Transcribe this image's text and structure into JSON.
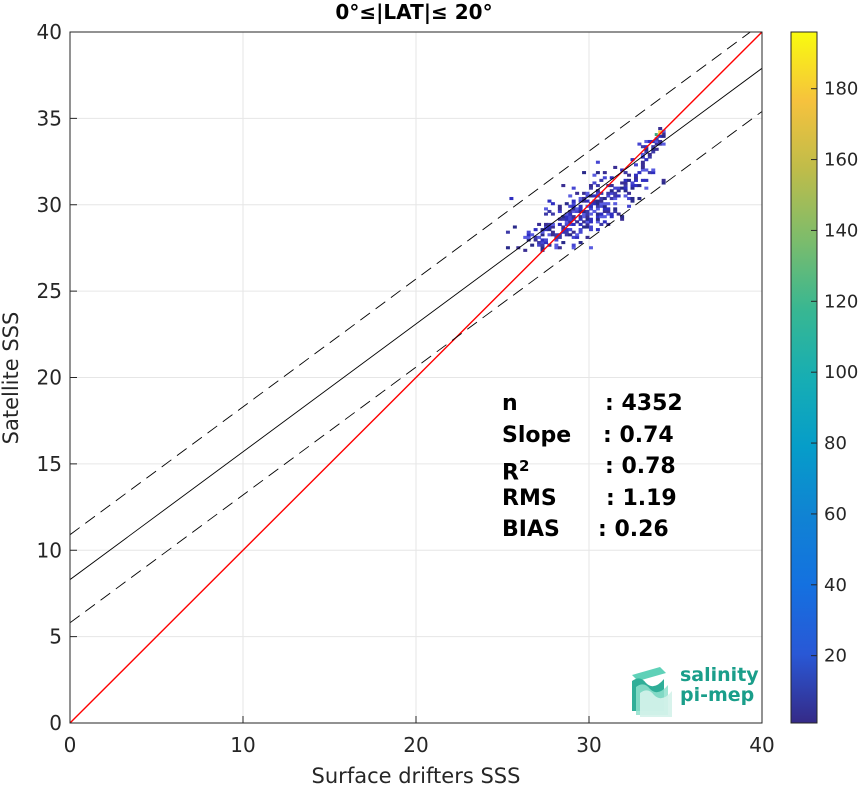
{
  "chart_data": {
    "type": "scatter",
    "title": "0°≤|LAT|≤ 20°",
    "xlabel": "Surface drifters SSS",
    "ylabel": "Satellite SSS",
    "xlim": [
      0,
      40
    ],
    "ylim": [
      0,
      40
    ],
    "xticks": [
      "0",
      "10",
      "20",
      "30",
      "40"
    ],
    "yticks": [
      "0",
      "5",
      "10",
      "15",
      "20",
      "25",
      "30",
      "35",
      "40"
    ],
    "grid": true,
    "colorbar": {
      "range": [
        1,
        196
      ],
      "ticks": [
        "20",
        "40",
        "60",
        "80",
        "100",
        "120",
        "140",
        "160",
        "180"
      ],
      "colormap": "parula"
    },
    "lines": [
      {
        "name": "1:1",
        "color": "#ff0000",
        "style": "solid",
        "intercept": 0,
        "slope": 1
      },
      {
        "name": "regression",
        "color": "#000000",
        "style": "solid",
        "intercept": 8.3,
        "slope": 0.74
      },
      {
        "name": "upper bound",
        "color": "#000000",
        "style": "dashed",
        "intercept": 10.9,
        "slope": 0.74
      },
      {
        "name": "lower bound",
        "color": "#000000",
        "style": "dashed",
        "intercept": 5.8,
        "slope": 0.74
      }
    ],
    "density_cloud": {
      "x_range": [
        23.8,
        34.3
      ],
      "y_range": [
        27.3,
        34.4
      ],
      "center": [
        29.8,
        29.6
      ],
      "peak_count": 196,
      "peak_at": [
        34.0,
        34.1
      ]
    }
  },
  "stats": {
    "n_label": "n",
    "n_value": ": 4352",
    "slope_label": "Slope",
    "slope_value": ": 0.74",
    "r2_label": "R",
    "r2_sup": "2",
    "r2_value": ": 0.78",
    "rms_label": "RMS",
    "rms_value": ": 1.19",
    "bias_label": "BIAS",
    "bias_value": ": 0.26"
  },
  "logo": {
    "line1": "salinity",
    "line2": "pi-mep"
  }
}
